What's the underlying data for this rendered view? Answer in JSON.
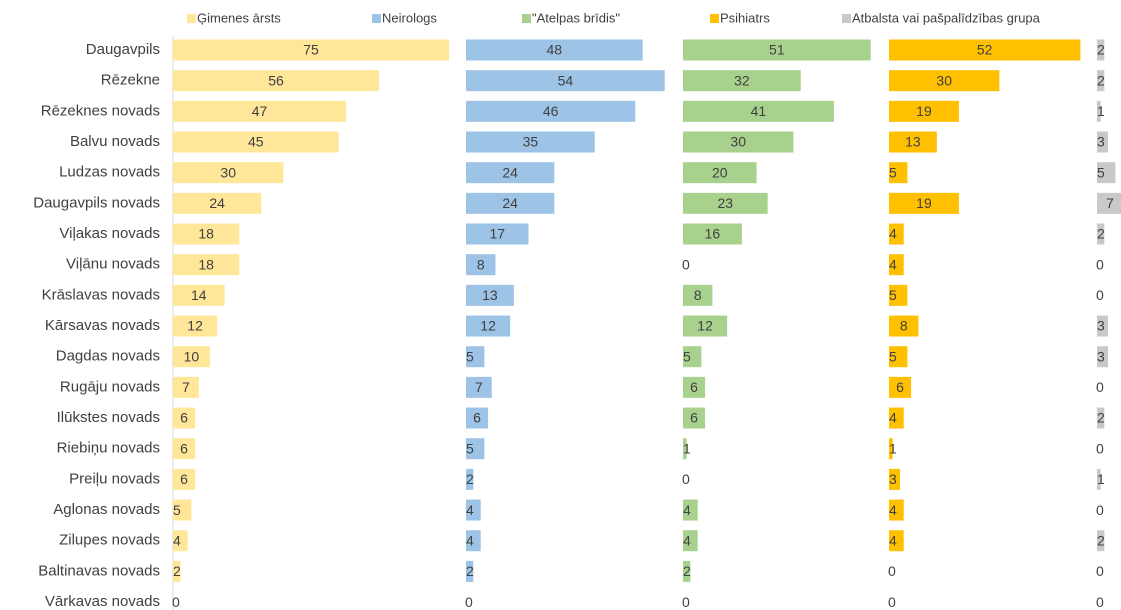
{
  "chart_data": {
    "type": "bar",
    "categories": [
      "Daugavpils",
      "Rēzekne",
      "Rēzeknes novads",
      "Balvu novads",
      "Ludzas novads",
      "Daugavpils novads",
      "Viļakas novads",
      "Viļānu novads",
      "Krāslavas novads",
      "Kārsavas novads",
      "Dagdas novads",
      "Rugāju novads",
      "Ilūkstes novads",
      "Riebiņu novads",
      "Preiļu novads",
      "Aglonas novads",
      "Zilupes novads",
      "Baltinavas novads",
      "Vārkavas novads"
    ],
    "series": [
      {
        "name": "Ģimenes ārsts",
        "color": "#ffe699",
        "values": [
          75,
          56,
          47,
          45,
          30,
          24,
          18,
          18,
          14,
          12,
          10,
          7,
          6,
          6,
          6,
          5,
          4,
          2,
          0
        ]
      },
      {
        "name": "Neirologs",
        "color": "#9dc3e6",
        "values": [
          48,
          54,
          46,
          35,
          24,
          24,
          17,
          8,
          13,
          12,
          5,
          7,
          6,
          5,
          2,
          4,
          4,
          2,
          0
        ]
      },
      {
        "name": "\"Atelpas brīdis\"",
        "color": "#a9d18e",
        "values": [
          51,
          32,
          41,
          30,
          20,
          23,
          16,
          0,
          8,
          12,
          5,
          6,
          6,
          1,
          0,
          4,
          4,
          2,
          0
        ]
      },
      {
        "name": "Psihiatrs",
        "color": "#ffc000",
        "values": [
          52,
          30,
          19,
          13,
          5,
          19,
          4,
          4,
          5,
          8,
          5,
          6,
          4,
          1,
          3,
          4,
          4,
          0,
          0
        ]
      },
      {
        "name": "Atbalsta vai pašpalīdzības grupa",
        "color": "#c9c9c9",
        "values": [
          2,
          2,
          1,
          3,
          5,
          7,
          2,
          0,
          0,
          3,
          3,
          0,
          2,
          0,
          1,
          0,
          2,
          0,
          0
        ]
      }
    ],
    "legend": "top"
  }
}
